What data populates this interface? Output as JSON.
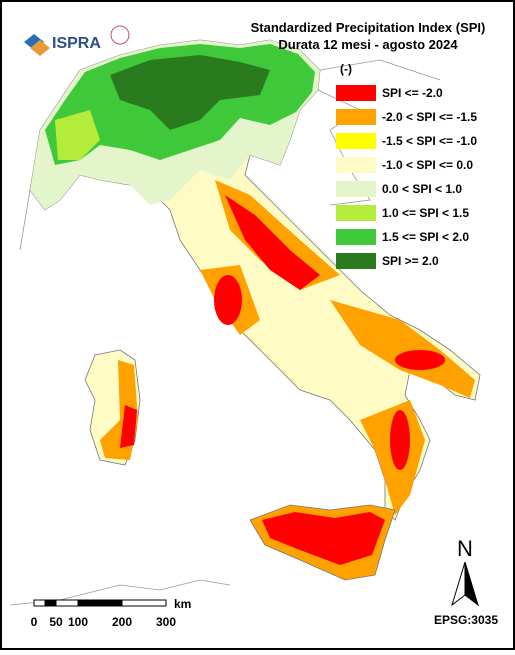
{
  "header": {
    "logo": "ISPRA",
    "title": "Standardized Precipitation  Index (SPI)",
    "subtitle": "Durata 12 mesi - agosto 2024"
  },
  "legend": {
    "unit": "(-)",
    "items": [
      {
        "label": "SPI <= -2.0",
        "color": "#ff0000"
      },
      {
        "label": "-2.0 < SPI <= -1.5",
        "color": "#ffa200"
      },
      {
        "label": "-1.5 < SPI <= -1.0",
        "color": "#ffff00"
      },
      {
        "label": "-1.0 < SPI <= 0.0",
        "color": "#fffbc4"
      },
      {
        "label": "0.0 < SPI < 1.0",
        "color": "#e4f5cc"
      },
      {
        "label": "1.0 <= SPI < 1.5",
        "color": "#b4ec3c"
      },
      {
        "label": "1.5 <= SPI < 2.0",
        "color": "#3fc83a"
      },
      {
        "label": "SPI >= 2.0",
        "color": "#2a7a1e"
      }
    ]
  },
  "scale_bar": {
    "ticks": [
      0,
      50,
      100,
      200,
      300
    ],
    "unit": "km"
  },
  "north_arrow": "N",
  "projection": "EPSG:3035"
}
